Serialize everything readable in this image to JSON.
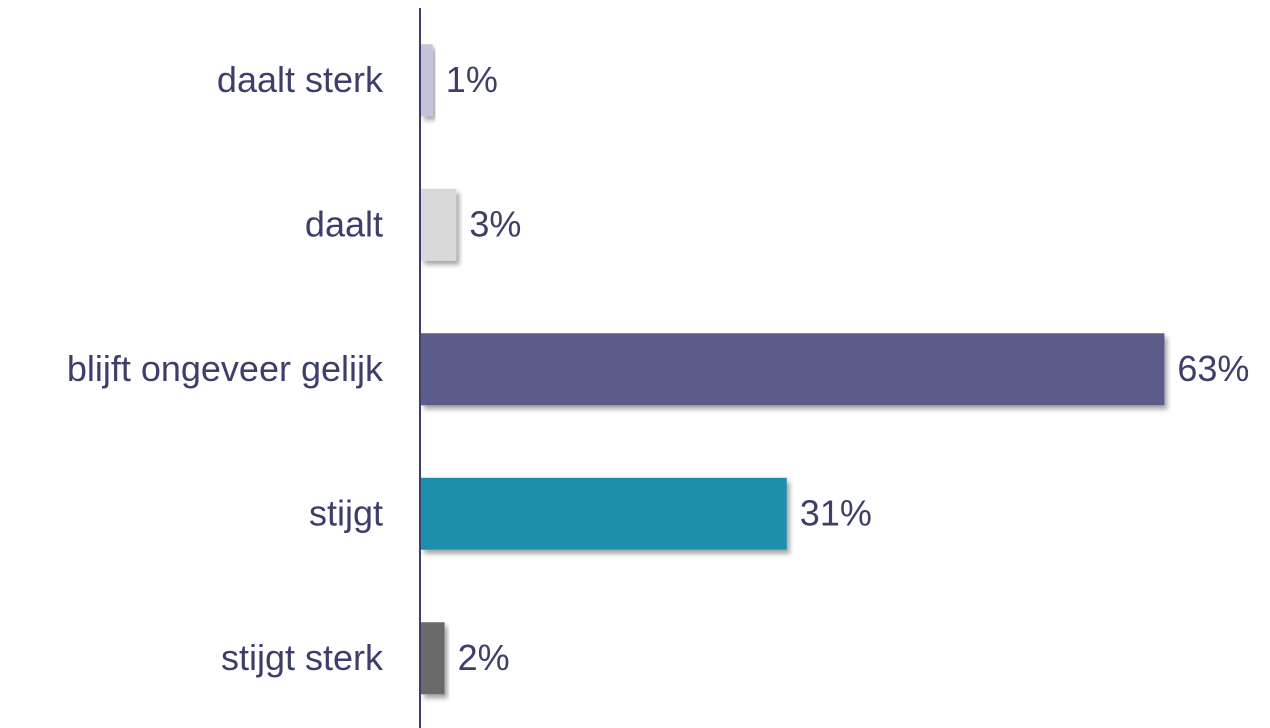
{
  "chart_data": {
    "type": "barh",
    "categories": [
      "daalt sterk",
      "daalt",
      "blijft ongeveer gelijk",
      "stijgt",
      "stijgt sterk"
    ],
    "values": [
      1,
      3,
      63,
      31,
      2
    ],
    "value_labels": [
      "1%",
      "3%",
      "63%",
      "31%",
      "2%"
    ],
    "colors": [
      "#c3c3da",
      "#d9d9d9",
      "#5b5b8a",
      "#1f8fad",
      "#6a6a6a"
    ]
  }
}
